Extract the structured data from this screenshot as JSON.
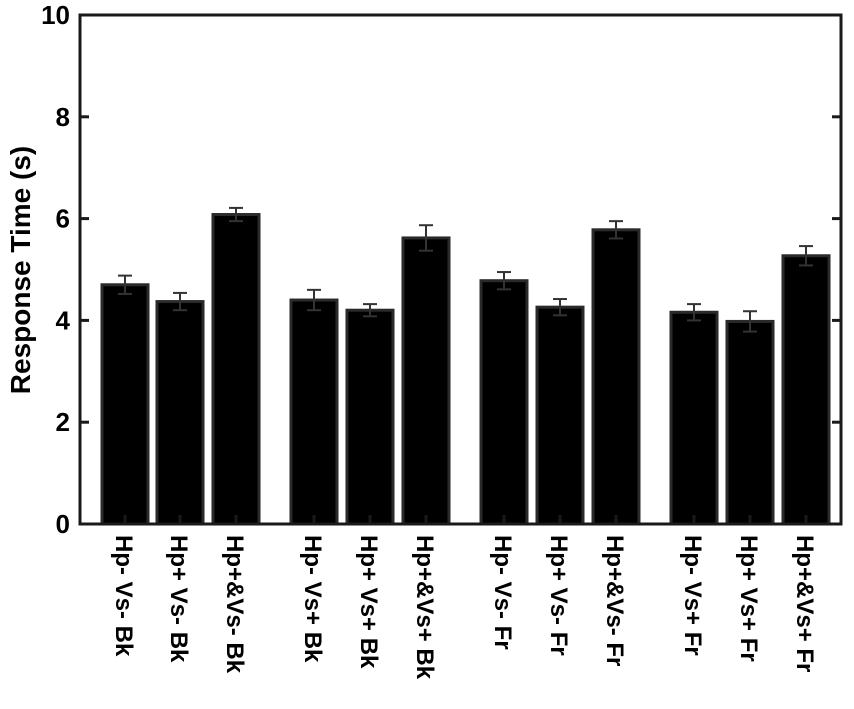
{
  "chart_data": {
    "type": "bar",
    "title": "",
    "xlabel": "",
    "ylabel": "Response Time (s)",
    "ylim": [
      0,
      10
    ],
    "yticks": [
      "0",
      "2",
      "4",
      "6",
      "8",
      "10"
    ],
    "grid": false,
    "legend": "none",
    "categories": [
      "Hp- Vs- Bk",
      "Hp+ Vs- Bk",
      "Hp+&Vs- Bk",
      "Hp- Vs+ Bk",
      "Hp+ Vs+ Bk",
      "Hp+&Vs+ Bk",
      "Hp- Vs- Fr",
      "Hp+ Vs- Fr",
      "Hp+&Vs- Fr",
      "Hp- Vs+ Fr",
      "Hp+ Vs+ Fr",
      "Hp+&Vs+ Fr"
    ],
    "values": [
      4.7,
      4.37,
      6.08,
      4.4,
      4.2,
      5.62,
      4.78,
      4.26,
      5.78,
      4.16,
      3.98,
      5.27
    ],
    "error": [
      0.18,
      0.17,
      0.13,
      0.2,
      0.12,
      0.25,
      0.17,
      0.16,
      0.17,
      0.16,
      0.2,
      0.19
    ],
    "groups": [
      3,
      3,
      3,
      3
    ],
    "colors": {
      "bar_fill": "#000000",
      "bar_edge": "#2a2a2a",
      "error_bar": "#333333",
      "axes": "#1a1a1a",
      "text": "#000000"
    }
  }
}
